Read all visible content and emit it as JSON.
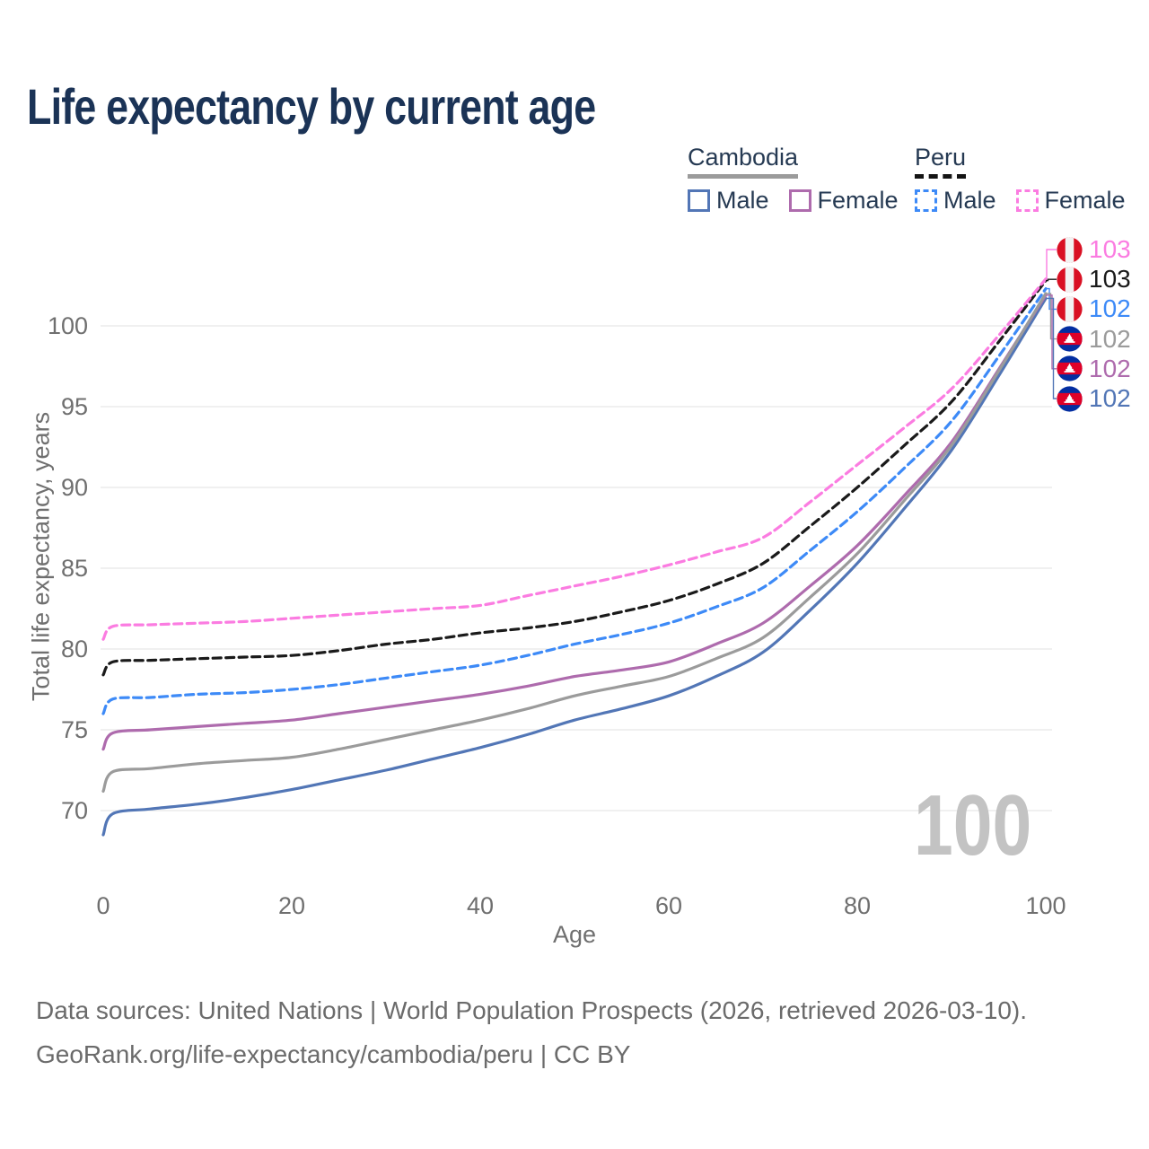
{
  "title": "Life expectancy by current age",
  "legend": {
    "groups": [
      {
        "label": "Cambodia",
        "line_style": "solid",
        "underline_color": "#9b9b9b",
        "items": [
          {
            "label": "Male",
            "color": "#5276b6"
          },
          {
            "label": "Female",
            "color": "#ae6bad"
          }
        ]
      },
      {
        "label": "Peru",
        "line_style": "dashed",
        "underline_color": "#141414",
        "items": [
          {
            "label": "Male",
            "color": "#3d8af7"
          },
          {
            "label": "Female",
            "color": "#fb7ce1"
          }
        ]
      }
    ]
  },
  "chart_data": {
    "type": "line",
    "title": "Life expectancy by current age",
    "xlabel": "Age",
    "ylabel": "Total life expectancy, years",
    "x_ticks": [
      0,
      20,
      40,
      60,
      80,
      100
    ],
    "y_ticks": [
      70,
      75,
      80,
      85,
      90,
      95,
      100
    ],
    "xlim": [
      0,
      100
    ],
    "ylim": [
      68,
      103.5
    ],
    "grid": "horizontal-only",
    "legend_position": "top-right",
    "watermark": "100",
    "x": [
      0,
      1,
      5,
      10,
      15,
      20,
      25,
      30,
      35,
      40,
      45,
      50,
      55,
      60,
      65,
      70,
      75,
      80,
      85,
      90,
      95,
      100
    ],
    "series": [
      {
        "name": "Peru Female",
        "country": "Peru",
        "sex": "Female",
        "color": "#fb7ce1",
        "dash": "dashed",
        "flag": "peru",
        "end_label": "103",
        "end_value": 102.9,
        "values": [
          80.6,
          81.4,
          81.5,
          81.6,
          81.7,
          81.9,
          82.1,
          82.3,
          82.5,
          82.7,
          83.3,
          83.9,
          84.5,
          85.2,
          86.0,
          86.9,
          89.1,
          91.4,
          93.7,
          96.1,
          99.4,
          102.9
        ]
      },
      {
        "name": "Peru",
        "country": "Peru",
        "sex": "Both",
        "color": "#1a1a1a",
        "dash": "dashed",
        "flag": "peru",
        "end_label": "103",
        "end_value": 102.8,
        "values": [
          78.4,
          79.2,
          79.3,
          79.4,
          79.5,
          79.6,
          79.9,
          80.3,
          80.6,
          81.0,
          81.3,
          81.7,
          82.3,
          83.0,
          84.0,
          85.3,
          87.6,
          90.0,
          92.6,
          95.3,
          99.0,
          102.8
        ]
      },
      {
        "name": "Peru Male",
        "country": "Peru",
        "sex": "Male",
        "color": "#3d8af7",
        "dash": "dashed",
        "flag": "peru",
        "end_label": "102",
        "end_value": 102.3,
        "values": [
          76.0,
          76.9,
          77.0,
          77.2,
          77.3,
          77.5,
          77.8,
          78.2,
          78.6,
          79.0,
          79.6,
          80.3,
          80.9,
          81.6,
          82.6,
          83.8,
          86.1,
          88.5,
          91.2,
          94.1,
          98.1,
          102.3
        ]
      },
      {
        "name": "Cambodia",
        "country": "Cambodia",
        "sex": "Both",
        "color": "#9b9b9b",
        "dash": "solid",
        "flag": "cambodia",
        "end_label": "102",
        "end_value": 102.0,
        "values": [
          71.2,
          72.4,
          72.6,
          72.9,
          73.1,
          73.3,
          73.8,
          74.4,
          75.0,
          75.6,
          76.3,
          77.1,
          77.7,
          78.3,
          79.4,
          80.7,
          83.2,
          85.9,
          89.2,
          92.6,
          97.2,
          102.0
        ]
      },
      {
        "name": "Cambodia Female",
        "country": "Cambodia",
        "sex": "Female",
        "color": "#ae6bad",
        "dash": "solid",
        "flag": "cambodia",
        "end_label": "102",
        "end_value": 101.9,
        "values": [
          73.8,
          74.8,
          75.0,
          75.2,
          75.4,
          75.6,
          76.0,
          76.4,
          76.8,
          77.2,
          77.7,
          78.3,
          78.7,
          79.2,
          80.3,
          81.6,
          83.9,
          86.4,
          89.5,
          92.8,
          97.3,
          101.9
        ]
      },
      {
        "name": "Cambodia Male",
        "country": "Cambodia",
        "sex": "Male",
        "color": "#5276b6",
        "dash": "solid",
        "flag": "cambodia",
        "end_label": "102",
        "end_value": 101.7,
        "values": [
          68.5,
          69.8,
          70.1,
          70.4,
          70.8,
          71.3,
          71.9,
          72.5,
          73.2,
          73.9,
          74.7,
          75.6,
          76.3,
          77.1,
          78.3,
          79.8,
          82.4,
          85.3,
          88.7,
          92.3,
          96.9,
          101.7
        ]
      }
    ]
  },
  "flags": {
    "peru": {
      "red": "#D91023",
      "white": "#F2F2F2"
    },
    "cambodia": {
      "blue": "#032EA1",
      "red": "#DF0027",
      "white": "#FFFFFF"
    }
  },
  "colors": {
    "grid": "#e8e8e8",
    "tick_text": "#6f6f6f",
    "title_text": "#1b3356",
    "watermark": "#c3c3c3"
  },
  "footer": {
    "line1": "Data sources: United Nations | World Population Prospects (2026, retrieved 2026-03-10).",
    "line2": "GeoRank.org/life-expectancy/cambodia/peru | CC BY"
  }
}
